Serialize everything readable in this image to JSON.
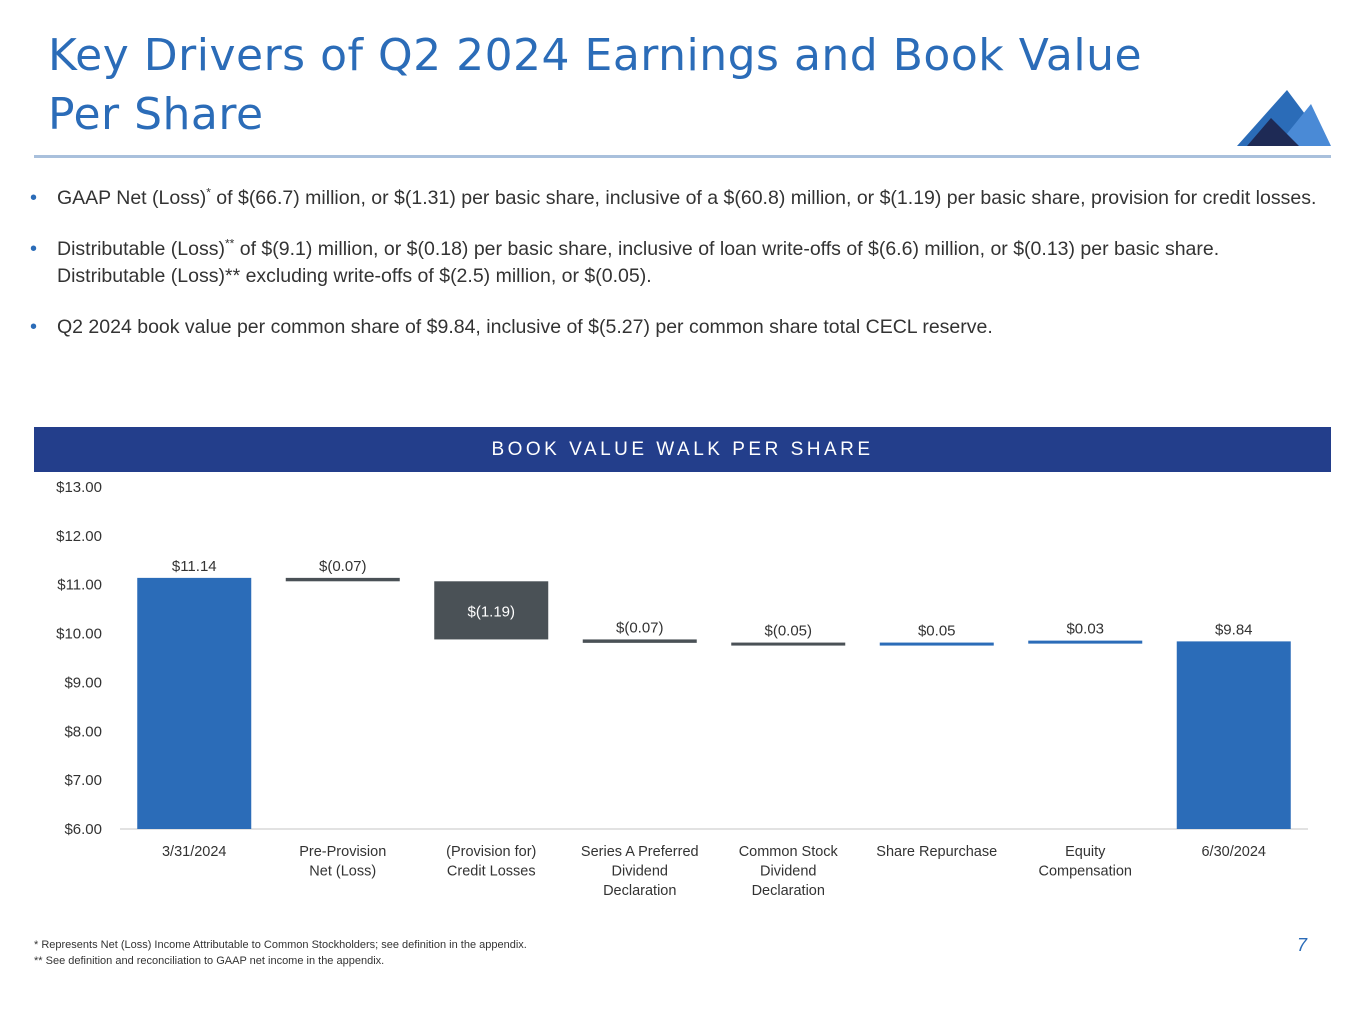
{
  "header": {
    "title": "Key Drivers of Q2 2024 Earnings and Book Value Per Share"
  },
  "bullets": [
    {
      "pre": "GAAP Net (Loss)",
      "sup": "*",
      "post": " of $(66.7) million, or $(1.31) per basic share, inclusive of a $(60.8) million, or $(1.19) per basic share, provision for credit losses."
    },
    {
      "pre": "Distributable (Loss)",
      "sup": "**",
      "post": " of $(9.1) million, or $(0.18) per basic share, inclusive of loan write-offs of $(6.6) million, or $(0.13) per basic share.  Distributable (Loss)** excluding write-offs of $(2.5) million, or $(0.05)."
    },
    {
      "pre": "Q2 2024 book value per common share of $9.84, inclusive of $(5.27) per common share total CECL reserve.",
      "sup": "",
      "post": ""
    }
  ],
  "chart_data": {
    "type": "bar",
    "title": "BOOK VALUE WALK PER SHARE",
    "categories": [
      [
        "3/31/2024"
      ],
      [
        "Pre-Provision",
        "Net (Loss)"
      ],
      [
        "(Provision for)",
        "Credit Losses"
      ],
      [
        "Series A Preferred",
        "Dividend",
        "Declaration"
      ],
      [
        "Common Stock",
        "Dividend",
        "Declaration"
      ],
      [
        "Share Repurchase"
      ],
      [
        "Equity",
        "Compensation"
      ],
      [
        "6/30/2024"
      ]
    ],
    "values": [
      11.14,
      -0.07,
      -1.19,
      -0.07,
      -0.05,
      0.05,
      0.03,
      9.84
    ],
    "value_labels": [
      "$11.14",
      "$(0.07)",
      "$(1.19)",
      "$(0.07)",
      "$(0.05)",
      "$0.05",
      "$0.03",
      "$9.84"
    ],
    "bar_kinds": [
      "total",
      "delta",
      "delta",
      "delta",
      "delta",
      "delta",
      "delta",
      "total"
    ],
    "y_ticks": [
      "$6.00",
      "$7.00",
      "$8.00",
      "$9.00",
      "$10.00",
      "$11.00",
      "$12.00",
      "$13.00"
    ],
    "ylim": [
      6,
      13
    ],
    "grid": false,
    "colors": {
      "total": "#2b6cb8",
      "decrease": "#4a5156",
      "increase": "#2b6cb8",
      "axis": "#d9d9d9"
    }
  },
  "footnotes": [
    "* Represents Net (Loss) Income Attributable to Common Stockholders; see definition in the appendix.",
    "** See definition and reconciliation to GAAP net income in the appendix."
  ],
  "page_number": "7",
  "logo": {
    "icon": "mountain-logo-icon"
  }
}
